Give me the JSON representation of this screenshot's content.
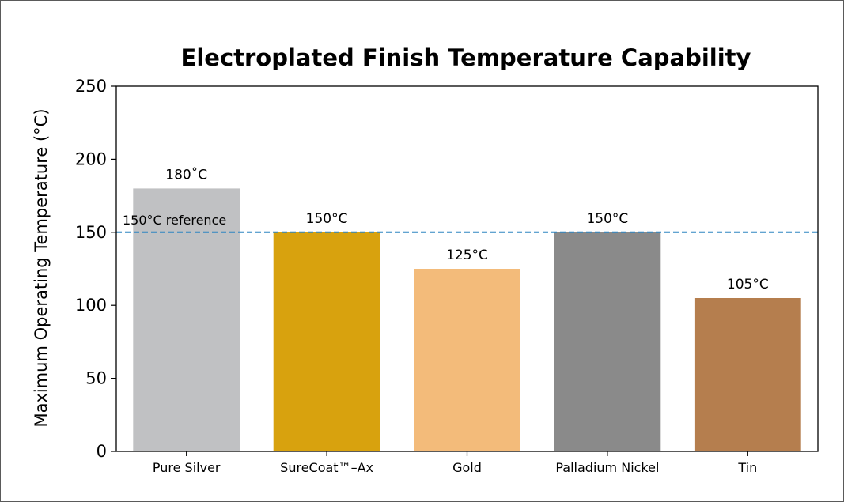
{
  "chart_data": {
    "type": "bar",
    "title": "Electroplated Finish Temperature Capability",
    "xlabel": "",
    "ylabel": "Maximum Operating Temperature (°C)",
    "ylim": [
      0,
      250
    ],
    "yticks": [
      0,
      50,
      100,
      150,
      200,
      250
    ],
    "categories": [
      "Pure Silver",
      "SureCoat™–Ax",
      "Gold",
      "Palladium Nickel",
      "Tin"
    ],
    "values": [
      180,
      150,
      125,
      150,
      105
    ],
    "data_labels": [
      "180˚C",
      "150°C",
      "125°C",
      "150°C",
      "105°C"
    ],
    "bar_colors": [
      "#c0c1c3",
      "#d8a20e",
      "#f3bb7a",
      "#8a8a8a",
      "#b57e4e"
    ],
    "reference_line": {
      "value": 150,
      "label": "150°C reference",
      "color": "#2e86c1",
      "style": "dashed"
    },
    "grid": false,
    "legend": "none"
  }
}
